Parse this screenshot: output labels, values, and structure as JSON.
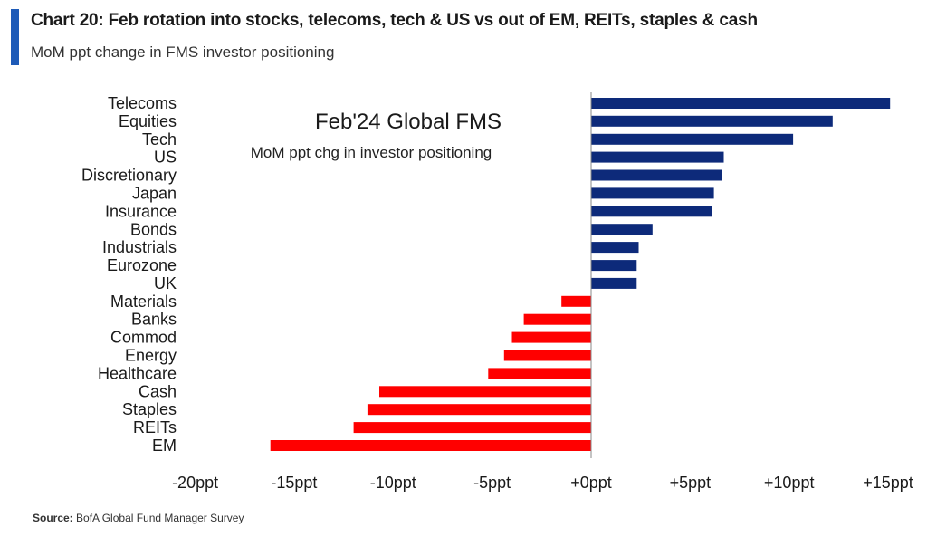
{
  "header": {
    "title": "Chart 20: Feb rotation into stocks, telecoms, tech & US vs out of EM, REITs, staples & cash",
    "subtitle": "MoM ppt change in FMS investor positioning"
  },
  "footer": {
    "source_label": "Source:",
    "source_text": "BofA Global Fund Manager Survey"
  },
  "colors": {
    "positive": "#0d2a7a",
    "negative": "#ff0000",
    "accent": "#1e5bb8"
  },
  "chart_data": {
    "type": "bar",
    "orientation": "horizontal",
    "title": "Feb'24 Global FMS",
    "subtitle": "MoM ppt chg in investor positioning",
    "categories": [
      "Telecoms",
      "Equities",
      "Tech",
      "US",
      "Discretionary",
      "Japan",
      "Insurance",
      "Bonds",
      "Industrials",
      "Eurozone",
      "UK",
      "Materials",
      "Banks",
      "Commod",
      "Energy",
      "Healthcare",
      "Cash",
      "Staples",
      "REITs",
      "EM"
    ],
    "values": [
      15.1,
      12.2,
      10.2,
      6.7,
      6.6,
      6.2,
      6.1,
      3.1,
      2.4,
      2.3,
      2.3,
      -1.5,
      -3.4,
      -4.0,
      -4.4,
      -5.2,
      -10.7,
      -11.3,
      -12.0,
      -16.2
    ],
    "xlim": [
      -20,
      15
    ],
    "xticks": [
      "-20ppt",
      "-15ppt",
      "-10ppt",
      "-5ppt",
      "+0ppt",
      "+5ppt",
      "+10ppt",
      "+15ppt"
    ],
    "xtick_values": [
      -20,
      -15,
      -10,
      -5,
      0,
      5,
      10,
      15
    ],
    "grid": false,
    "legend": "none"
  }
}
